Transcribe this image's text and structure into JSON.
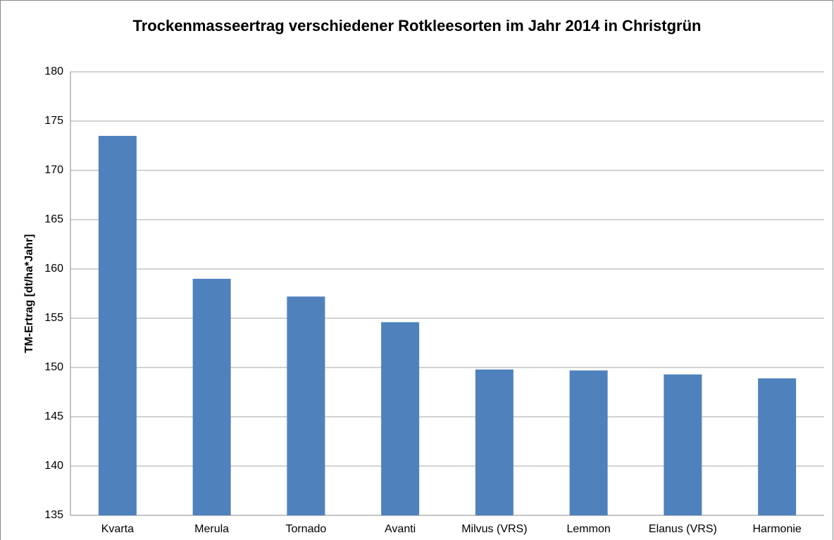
{
  "chart_data": {
    "type": "bar",
    "title": "Trockenmasseertrag verschiedener Rotkleesorten im Jahr 2014 in Christgrün",
    "y_label": "TM-Ertrag [dt/ha*Jahr]",
    "categories": [
      "Kvarta",
      "Merula",
      "Tornado",
      "Avanti",
      "Milvus (VRS)",
      "Lemmon",
      "Elanus (VRS)",
      "Harmonie"
    ],
    "values": [
      173.5,
      159.0,
      157.2,
      154.6,
      149.8,
      149.7,
      149.3,
      148.9
    ],
    "color": "#4f81bd",
    "ylim": [
      135,
      180
    ],
    "yticks": [
      135,
      140,
      145,
      150,
      155,
      160,
      165,
      170,
      175,
      180
    ],
    "grid": true
  }
}
